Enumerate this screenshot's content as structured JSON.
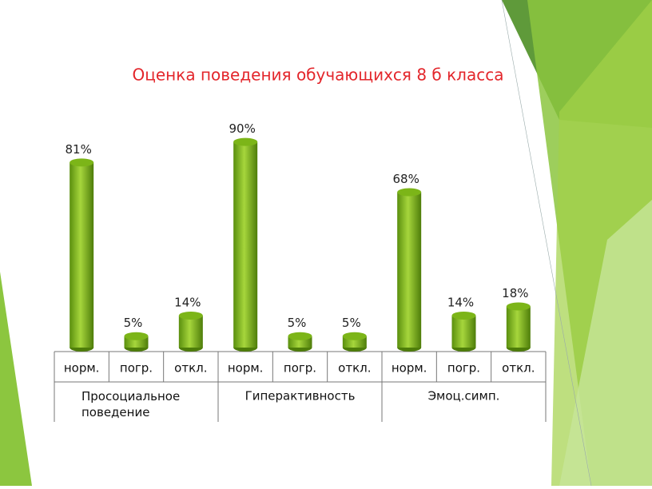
{
  "chart_data": {
    "type": "bar",
    "title": "Оценка поведения обучающихся  8 б класса",
    "categories": [
      "норм.",
      "погр.",
      "откл.",
      "норм.",
      "погр.",
      "откл.",
      "норм.",
      "погр.",
      "откл."
    ],
    "groups": [
      "Просоциальное поведение",
      "Гиперактивность",
      "Эмоц.симп."
    ],
    "values": [
      81,
      5,
      14,
      90,
      5,
      5,
      68,
      14,
      18
    ],
    "value_labels": [
      "81%",
      "5%",
      "14%",
      "90%",
      "5%",
      "5%",
      "68%",
      "14%",
      "18%"
    ],
    "color": "#7cb518",
    "ylim": [
      0,
      100
    ]
  }
}
